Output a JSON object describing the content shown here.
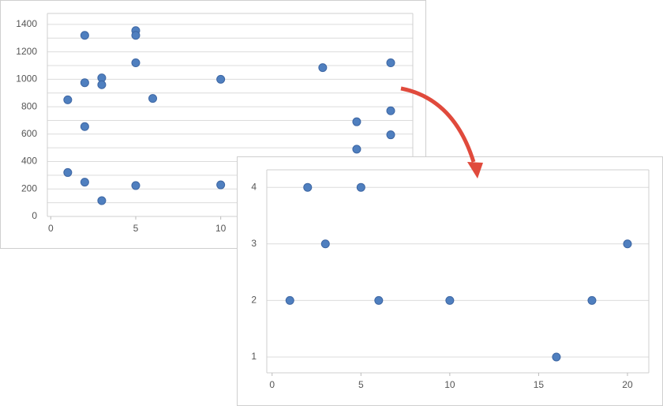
{
  "chart_data": [
    {
      "type": "scatter",
      "color": "#4f7fbf",
      "x": [
        1,
        1,
        2,
        2,
        2,
        2,
        3,
        3,
        3,
        5,
        5,
        5,
        5,
        6,
        10,
        10,
        16,
        18,
        18,
        20,
        20,
        20
      ],
      "values": [
        850,
        320,
        1320,
        975,
        655,
        250,
        1010,
        960,
        115,
        1355,
        1320,
        1120,
        225,
        860,
        1000,
        230,
        1085,
        690,
        490,
        1120,
        770,
        595
      ],
      "xlim": [
        -0.2,
        21.3
      ],
      "ylim": [
        0,
        1480
      ],
      "xticks": [
        0,
        5,
        10
      ],
      "yticks": [
        0,
        200,
        400,
        600,
        800,
        1000,
        1200,
        1400
      ],
      "y_minor_ticks": [
        100,
        300,
        500,
        700,
        900,
        1100,
        1300
      ],
      "grid": true
    },
    {
      "type": "scatter",
      "color": "#4f7fbf",
      "x": [
        1,
        2,
        3,
        5,
        6,
        10,
        16,
        18,
        20
      ],
      "values": [
        2,
        4,
        3,
        4,
        2,
        2,
        1,
        2,
        3
      ],
      "xlim": [
        -0.3,
        21.2
      ],
      "ylim": [
        0.72,
        4.31
      ],
      "xticks": [
        0,
        5,
        10,
        15,
        20
      ],
      "yticks": [
        1,
        2,
        3,
        4
      ],
      "grid": true
    }
  ]
}
